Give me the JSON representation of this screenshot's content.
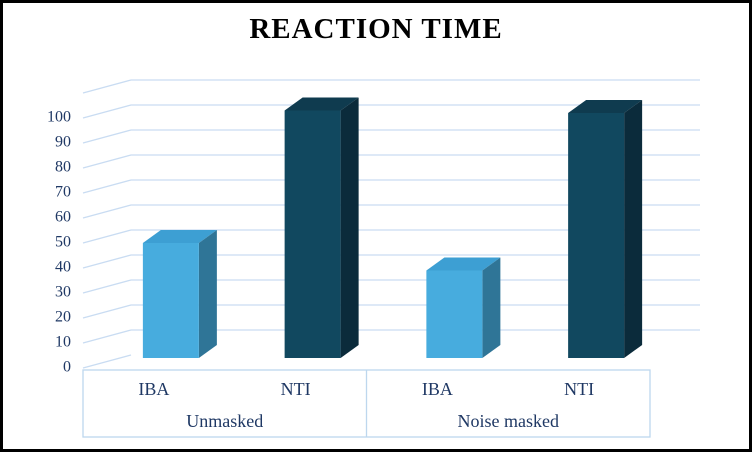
{
  "window": {
    "background": "#ffffff",
    "border_color": "#000000"
  },
  "chart_data": {
    "type": "bar",
    "projection": "3d-oblique",
    "title": "REACTION TIME",
    "xlabel": "",
    "ylabel": "",
    "groups": [
      "Unmasked",
      "Noise masked"
    ],
    "categories_per_group": [
      "IBA",
      "NTI"
    ],
    "points": [
      {
        "group": "Unmasked",
        "category": "IBA",
        "value": 46,
        "color_key": "iba"
      },
      {
        "group": "Unmasked",
        "category": "NTI",
        "value": 99,
        "color_key": "nti"
      },
      {
        "group": "Noise masked",
        "category": "IBA",
        "value": 35,
        "color_key": "iba"
      },
      {
        "group": "Noise masked",
        "category": "NTI",
        "value": 98,
        "color_key": "nti"
      }
    ],
    "ylim": [
      0,
      110
    ],
    "yticks": [
      0,
      10,
      20,
      30,
      40,
      50,
      60,
      70,
      80,
      90,
      100
    ],
    "ytick_step": 10,
    "grid_max": 110,
    "gridlines": "on",
    "legend": "none",
    "colors": {
      "iba": {
        "front": "#47ACDE",
        "top": "#3D9FD3",
        "side": "#2F7597"
      },
      "nti": {
        "front": "#11485F",
        "top": "#0F3B4F",
        "side": "#0B2B3B"
      },
      "gridline": "#C9DCF2",
      "axis_box": "#BDD7EE",
      "label": "#1F3864",
      "title": "#000000"
    }
  }
}
